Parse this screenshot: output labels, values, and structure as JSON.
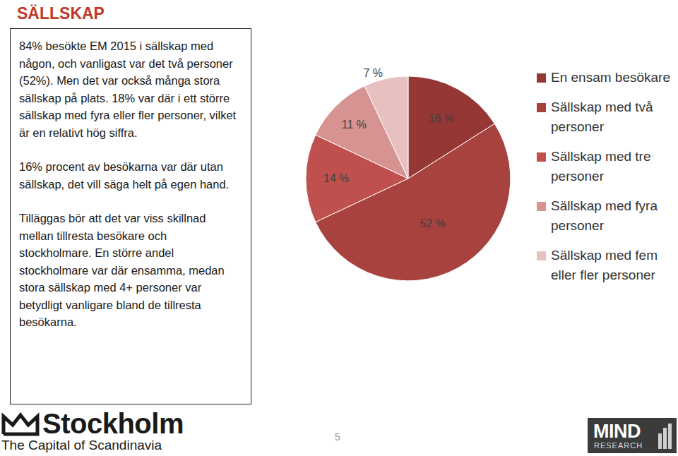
{
  "chart_data": {
    "type": "pie",
    "categories": [
      "En ensam besökare",
      "Sällskap med två personer",
      "Sällskap med tre personer",
      "Sällskap med fyra personer",
      "Sällskap med fem eller fler personer"
    ],
    "values": [
      16,
      52,
      14,
      11,
      7
    ],
    "value_labels": [
      "16 %",
      "52 %",
      "14 %",
      "11 %",
      "7 %"
    ],
    "colors": [
      "#953735",
      "#a8423f",
      "#c0504d",
      "#d69391",
      "#e6c1c0"
    ],
    "data_labels": true,
    "legend": "right"
  },
  "page": {
    "heading": "SÄLLSKAP",
    "text_box": [
      "84% besökte EM 2015 i sällskap med någon, och vanligast var det två personer (52%). Men det var också många stora sällskap på plats. 18% var där i ett större sällskap med fyra eller fler personer, vilket är en relativt hög siffra.",
      "16% procent av besökarna var där utan sällskap, det vill säga helt på egen hand.",
      "Tilläggas bör att det var viss skillnad mellan tillresta besökare och stockholmare. En större andel stockholmare var där ensamma, medan stora sällskap med 4+ personer var betydligt vanligare bland de tillresta besökarna."
    ],
    "page_number": "5",
    "logo_left": {
      "name": "Stockholm",
      "tagline": "The Capital of Scandinavia"
    },
    "logo_right": {
      "name": "MIND",
      "tagline": "RESEARCH"
    }
  }
}
